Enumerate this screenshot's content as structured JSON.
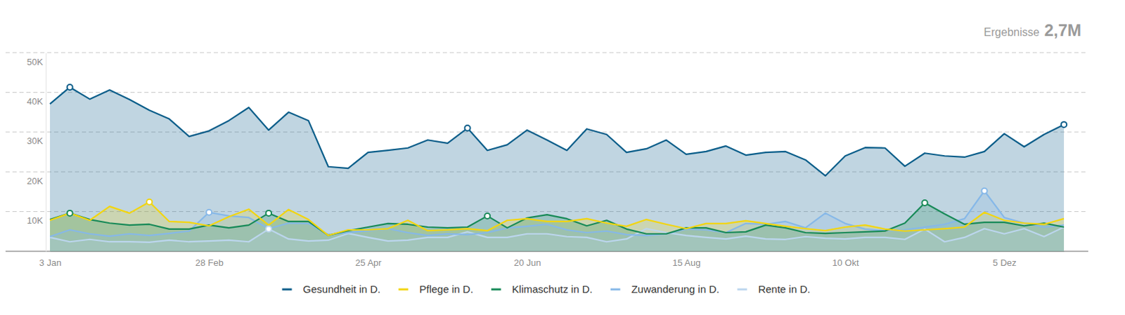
{
  "chart_data": {
    "type": "area",
    "annotations": [
      "Ergebnisse",
      "2,7M"
    ],
    "categories": [
      "3 Jan",
      null,
      null,
      null,
      null,
      null,
      null,
      null,
      "28 Feb",
      null,
      null,
      null,
      null,
      null,
      null,
      null,
      "25 Apr",
      null,
      null,
      null,
      null,
      null,
      null,
      null,
      "20 Jun",
      null,
      null,
      null,
      null,
      null,
      null,
      null,
      "15 Aug",
      null,
      null,
      null,
      null,
      null,
      null,
      null,
      "10 Okt",
      null,
      null,
      null,
      null,
      null,
      null,
      null,
      "5 Dez",
      null,
      null,
      null
    ],
    "series": [
      {
        "name": "Gesundheit in D.",
        "color": "#0b5e8a",
        "highlights": [
          1,
          21,
          51
        ],
        "values": [
          37100,
          41300,
          38300,
          40600,
          38200,
          35500,
          33300,
          28900,
          30300,
          32900,
          36200,
          30500,
          35000,
          32900,
          21300,
          20900,
          24900,
          25400,
          26000,
          28000,
          27200,
          31000,
          25400,
          26800,
          30500,
          28000,
          25400,
          30800,
          29400,
          24900,
          25800,
          28000,
          24400,
          25100,
          26500,
          24200,
          24900,
          25100,
          23000,
          19000,
          24000,
          26100,
          26000,
          21400,
          24700,
          24000,
          23700,
          25100,
          29600,
          26300,
          29400,
          31900
        ]
      },
      {
        "name": "Pflege in D.",
        "color": "#f2d50f",
        "highlights": [
          5
        ],
        "values": [
          7800,
          9600,
          7800,
          11300,
          9600,
          12400,
          7500,
          7300,
          6400,
          8700,
          10600,
          6600,
          10500,
          8000,
          4000,
          5400,
          5400,
          5700,
          7800,
          5200,
          5400,
          5700,
          5200,
          7800,
          8200,
          7500,
          7500,
          8200,
          7100,
          6300,
          8000,
          6800,
          5700,
          7000,
          7000,
          7700,
          7000,
          6300,
          5700,
          5200,
          6100,
          6600,
          5600,
          5100,
          5400,
          5700,
          6100,
          9800,
          7800,
          7100,
          6800,
          8200
        ]
      },
      {
        "name": "Klimaschutz in D.",
        "color": "#188a58",
        "highlights": [
          1,
          11,
          22,
          44
        ],
        "values": [
          8000,
          9600,
          8000,
          7100,
          6600,
          6800,
          5600,
          5600,
          6600,
          5900,
          6600,
          9600,
          7500,
          7500,
          4000,
          5200,
          6100,
          7000,
          6800,
          6100,
          5900,
          6100,
          8900,
          5900,
          8400,
          9200,
          8200,
          6400,
          7800,
          5600,
          4400,
          4400,
          5900,
          5900,
          4700,
          4900,
          6600,
          5900,
          4700,
          4500,
          4700,
          4900,
          5100,
          7100,
          12200,
          9400,
          6800,
          7300,
          7300,
          6400,
          7100,
          6100
        ]
      },
      {
        "name": "Zuwanderung in D.",
        "color": "#86b8e8",
        "highlights": [
          8,
          47
        ],
        "values": [
          3700,
          5400,
          4400,
          3800,
          4400,
          4000,
          4500,
          5100,
          9800,
          8900,
          8500,
          5700,
          7100,
          7000,
          4200,
          4700,
          5200,
          5700,
          4700,
          4000,
          4400,
          4200,
          4700,
          5900,
          6300,
          6800,
          5400,
          4700,
          5100,
          4200,
          4000,
          4400,
          5600,
          5400,
          4700,
          7000,
          6800,
          7500,
          5900,
          9600,
          7000,
          5600,
          5200,
          5400,
          6100,
          6800,
          8200,
          15200,
          8500,
          7100,
          6100,
          6600
        ]
      },
      {
        "name": "Rente in D.",
        "color": "#bcd6ee",
        "highlights": [
          11
        ],
        "values": [
          3500,
          2400,
          3000,
          2400,
          2400,
          2300,
          2800,
          2400,
          2600,
          2800,
          2400,
          5600,
          3100,
          2600,
          2800,
          4500,
          3500,
          2600,
          2800,
          3500,
          3500,
          4900,
          3500,
          3500,
          4400,
          4400,
          3700,
          3500,
          2400,
          3100,
          5700,
          4700,
          4000,
          3500,
          3100,
          3800,
          3100,
          3000,
          3700,
          3300,
          3100,
          3500,
          3500,
          3000,
          5600,
          2400,
          3500,
          5700,
          4400,
          5700,
          3700,
          6100
        ]
      }
    ],
    "ylim": [
      0,
      50000
    ],
    "yticks": [
      {
        "value": 10000,
        "label": "10K"
      },
      {
        "value": 20000,
        "label": "20K"
      },
      {
        "value": 30000,
        "label": "30K"
      },
      {
        "value": 40000,
        "label": "40K"
      },
      {
        "value": 50000,
        "label": "50K"
      }
    ],
    "grid": true,
    "legend": "bottom"
  }
}
